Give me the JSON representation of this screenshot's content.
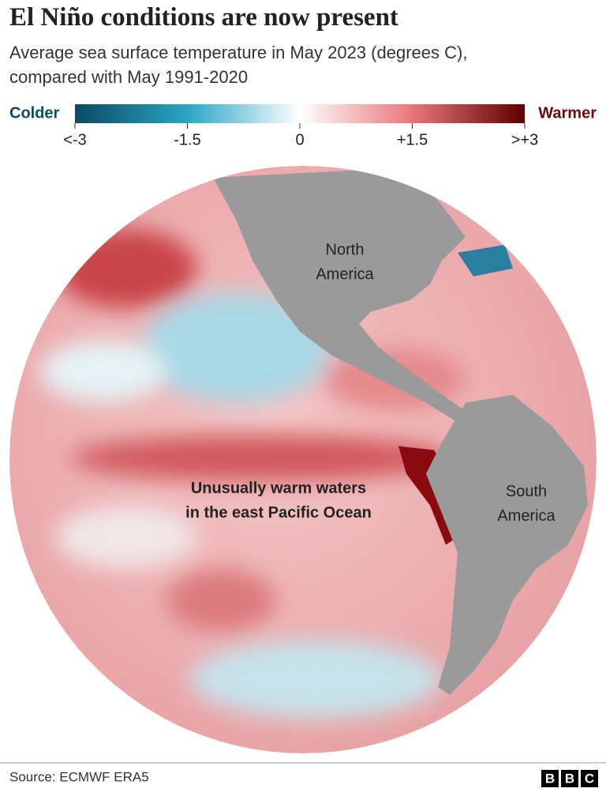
{
  "header": {
    "title": "El Niño conditions are now present",
    "subtitle": [
      "Average sea surface temperature in May 2023 (degrees C),",
      "compared with May 1991-2020"
    ]
  },
  "legend": {
    "low_label": "Colder",
    "high_label": "Warmer",
    "ticks": [
      {
        "value": -3,
        "label": "<-3"
      },
      {
        "value": -1.5,
        "label": "-1.5"
      },
      0,
      {
        "value": 1.5,
        "label": "+1.5"
      },
      {
        "value": 3,
        "label": ">+3"
      }
    ]
  },
  "map": {
    "labels": [
      {
        "lines": [
          "North",
          "America"
        ]
      },
      {
        "lines": [
          "South",
          "America"
        ]
      }
    ],
    "annotation": [
      "Unusually warm waters",
      "in the east Pacific Ocean"
    ]
  },
  "footer": {
    "source": "Source: ECMWF ERA5",
    "logo": [
      "B",
      "B",
      "C"
    ]
  }
}
